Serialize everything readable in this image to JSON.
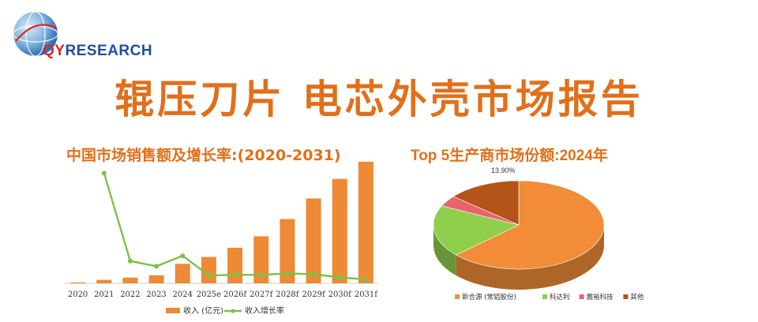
{
  "brand": {
    "logo_q": "QY",
    "logo_rest": "RESEARCH"
  },
  "page": {
    "title": "辊压刀片 电芯外壳市场报告",
    "left_chart_title": "中国市场销售额及增长率:(2020-2031)",
    "right_chart_title": "Top 5生产商市场份额:2024年"
  },
  "colors": {
    "accent": "#e0701b",
    "bar": "#ee8a35",
    "line": "#7cc14a"
  },
  "chart_data": [
    {
      "type": "bar",
      "categories": [
        "2020",
        "2021",
        "2022",
        "2023",
        "2024",
        "2025e",
        "2026f",
        "2027f",
        "2028f",
        "2029f",
        "2030f",
        "2031f"
      ],
      "series": [
        {
          "name": "收入 (亿元)",
          "type": "bar",
          "values": [
            0.4,
            1.5,
            2.5,
            3.5,
            8.5,
            11.5,
            15.5,
            20.5,
            28,
            37,
            45.5,
            53
          ]
        },
        {
          "name": "收入增长率",
          "type": "line",
          "values": [
            null,
            8.4,
            1.7,
            1.3,
            2.1,
            0.6,
            0.65,
            0.65,
            0.75,
            0.7,
            0.45,
            0.3
          ]
        }
      ],
      "title": "中国市场销售额及增长率:(2020-2031)",
      "legend": "bottom"
    },
    {
      "type": "pie",
      "title": "Top 5生产商市场份额:2024年",
      "slices": [
        {
          "label": "新合源 (常铝股份)",
          "value": 63.1,
          "color": "#f28c38"
        },
        {
          "label": "科达利",
          "value": 19.0,
          "color": "#8fcf4c"
        },
        {
          "label": "震裕科技",
          "value": 4.0,
          "color": "#e8636a"
        },
        {
          "label": "其他",
          "value": 13.9,
          "color": "#b5541a"
        }
      ],
      "data_labels": [
        "13.90%"
      ],
      "legend": "bottom"
    }
  ]
}
